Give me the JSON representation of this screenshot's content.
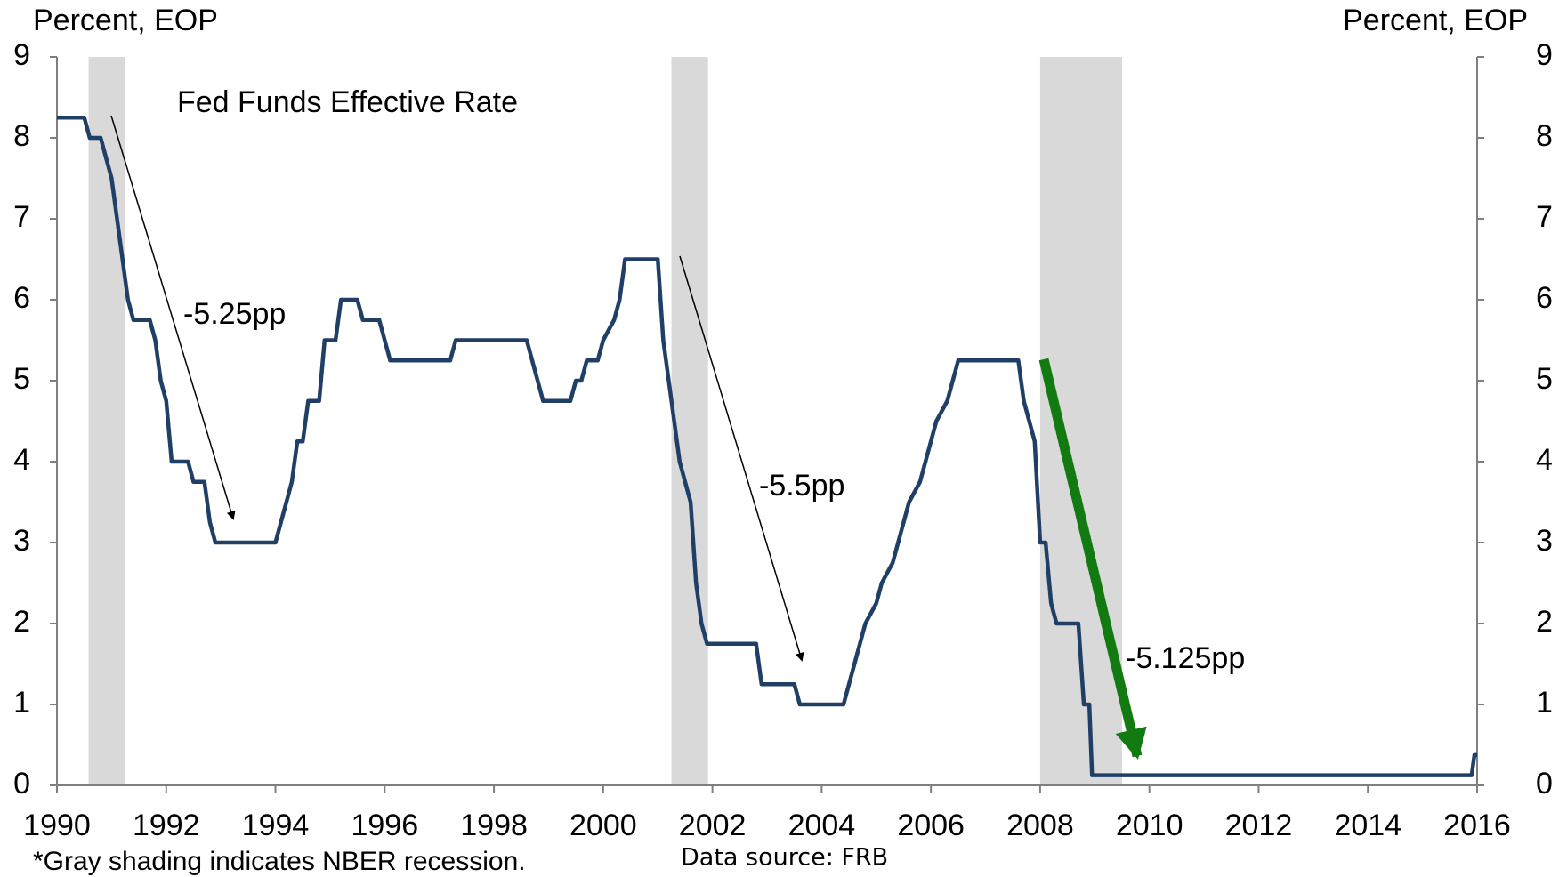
{
  "chart_data": {
    "type": "line",
    "title": "Fed Funds Effective Rate",
    "ylabel": "Percent, EOP",
    "y2label": "Percent, EOP",
    "footnote": "*Gray shading indicates NBER  recession.",
    "source": "Data source: FRB",
    "annotations": [
      "-5.25pp",
      "-5.5pp",
      "-5.125pp"
    ],
    "xlim": [
      1990,
      2016
    ],
    "xticks": [
      1990,
      1992,
      1994,
      1996,
      1998,
      2000,
      2002,
      2004,
      2006,
      2008,
      2010,
      2012,
      2014,
      2016
    ],
    "ylim": [
      0,
      9
    ],
    "yticks": [
      0,
      1,
      2,
      3,
      4,
      5,
      6,
      7,
      8,
      9
    ],
    "y2lim": [
      0,
      9
    ],
    "y2ticks": [
      0,
      1,
      2,
      3,
      4,
      5,
      6,
      7,
      8,
      9
    ],
    "recession_color": "#d9d9d9",
    "recessions": [
      {
        "start": 1990.58,
        "end": 1991.25
      },
      {
        "start": 2001.25,
        "end": 2001.92
      },
      {
        "start": 2008.0,
        "end": 2009.5
      }
    ],
    "series": [
      {
        "name": "Fed Funds Effective Rate",
        "color": "#1f3f66",
        "x": [
          1990.0,
          1990.5,
          1990.6,
          1990.8,
          1990.9,
          1991.0,
          1991.1,
          1991.2,
          1991.3,
          1991.4,
          1991.7,
          1991.8,
          1991.9,
          1992.0,
          1992.1,
          1992.4,
          1992.5,
          1992.7,
          1992.8,
          1992.9,
          1994.0,
          1994.1,
          1994.3,
          1994.4,
          1994.5,
          1994.6,
          1994.8,
          1994.9,
          1995.1,
          1995.2,
          1995.5,
          1995.6,
          1995.9,
          1996.0,
          1996.1,
          1997.2,
          1997.3,
          1998.6,
          1998.7,
          1998.8,
          1998.9,
          1999.4,
          1999.5,
          1999.6,
          1999.7,
          1999.9,
          2000.0,
          2000.2,
          2000.3,
          2000.4,
          2001.0,
          2001.1,
          2001.2,
          2001.3,
          2001.4,
          2001.5,
          2001.6,
          2001.7,
          2001.8,
          2001.9,
          2002.8,
          2002.9,
          2003.5,
          2003.6,
          2004.4,
          2004.5,
          2004.6,
          2004.7,
          2004.8,
          2005.0,
          2005.1,
          2005.3,
          2005.4,
          2005.6,
          2005.8,
          2005.9,
          2006.0,
          2006.1,
          2006.3,
          2006.4,
          2006.5,
          2007.6,
          2007.7,
          2007.8,
          2007.9,
          2008.0,
          2008.1,
          2008.2,
          2008.3,
          2008.7,
          2008.8,
          2008.9,
          2008.95,
          2015.9,
          2015.95,
          2016.0
        ],
        "values": [
          8.25,
          8.25,
          8.0,
          8.0,
          7.75,
          7.5,
          7.0,
          6.5,
          6.0,
          5.75,
          5.75,
          5.5,
          5.0,
          4.75,
          4.0,
          4.0,
          3.75,
          3.75,
          3.25,
          3.0,
          3.0,
          3.25,
          3.75,
          4.25,
          4.25,
          4.75,
          4.75,
          5.5,
          5.5,
          6.0,
          6.0,
          5.75,
          5.75,
          5.5,
          5.25,
          5.25,
          5.5,
          5.5,
          5.25,
          5.0,
          4.75,
          4.75,
          5.0,
          5.0,
          5.25,
          5.25,
          5.5,
          5.75,
          6.0,
          6.5,
          6.5,
          5.5,
          5.0,
          4.5,
          4.0,
          3.75,
          3.5,
          2.5,
          2.0,
          1.75,
          1.75,
          1.25,
          1.25,
          1.0,
          1.0,
          1.25,
          1.5,
          1.75,
          2.0,
          2.25,
          2.5,
          2.75,
          3.0,
          3.5,
          3.75,
          4.0,
          4.25,
          4.5,
          4.75,
          5.0,
          5.25,
          5.25,
          4.75,
          4.5,
          4.25,
          3.0,
          3.0,
          2.25,
          2.0,
          2.0,
          1.0,
          1.0,
          0.125,
          0.125,
          0.375,
          0.375
        ]
      }
    ]
  }
}
